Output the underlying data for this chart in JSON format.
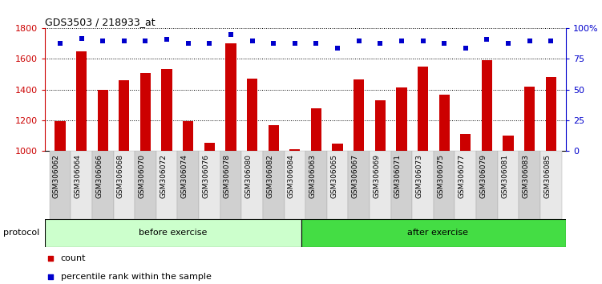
{
  "title": "GDS3503 / 218933_at",
  "categories": [
    "GSM306062",
    "GSM306064",
    "GSM306066",
    "GSM306068",
    "GSM306070",
    "GSM306072",
    "GSM306074",
    "GSM306076",
    "GSM306078",
    "GSM306080",
    "GSM306082",
    "GSM306084",
    "GSM306063",
    "GSM306065",
    "GSM306067",
    "GSM306069",
    "GSM306071",
    "GSM306073",
    "GSM306075",
    "GSM306077",
    "GSM306079",
    "GSM306081",
    "GSM306083",
    "GSM306085"
  ],
  "bar_values": [
    1190,
    1650,
    1395,
    1460,
    1510,
    1535,
    1190,
    1050,
    1700,
    1470,
    1165,
    1010,
    1275,
    1045,
    1465,
    1330,
    1415,
    1550,
    1365,
    1110,
    1590,
    1100,
    1420,
    1480
  ],
  "dot_values_pct": [
    88,
    92,
    90,
    90,
    90,
    91,
    88,
    88,
    95,
    90,
    88,
    88,
    88,
    84,
    90,
    88,
    90,
    90,
    88,
    84,
    91,
    88,
    90,
    90
  ],
  "bar_color": "#cc0000",
  "dot_color": "#0000cc",
  "ylim_left": [
    1000,
    1800
  ],
  "ylim_right": [
    0,
    100
  ],
  "yticks_left": [
    1000,
    1200,
    1400,
    1600,
    1800
  ],
  "yticks_right": [
    0,
    25,
    50,
    75,
    100
  ],
  "ytick_labels_right": [
    "0",
    "25",
    "50",
    "75",
    "100%"
  ],
  "n_before": 12,
  "n_after": 12,
  "protocol_label_before": "before exercise",
  "protocol_label_after": "after exercise",
  "protocol_color_before": "#ccffcc",
  "protocol_color_after": "#44dd44",
  "legend_count_label": "count",
  "legend_pct_label": "percentile rank within the sample",
  "tick_bg_odd": "#d0d0d0",
  "tick_bg_even": "#e8e8e8",
  "bar_width": 0.5
}
